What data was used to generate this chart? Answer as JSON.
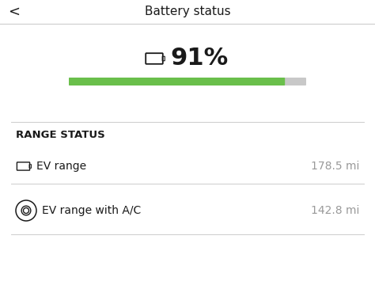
{
  "title": "Battery status",
  "back_arrow": "<",
  "battery_percent": "91%",
  "battery_level": 0.91,
  "bar_color_filled": "#6abf4b",
  "bar_color_empty": "#c8c8c8",
  "section_title": "RANGE STATUS",
  "row1_label": "EV range",
  "row1_value": "178.5 mi",
  "row2_label": "EV range with A/C",
  "row2_value": "142.8 mi",
  "bg_color": "#f5f5f5",
  "text_color_dark": "#1a1a1a",
  "text_color_gray": "#999999",
  "separator_color": "#cccccc",
  "title_fontsize": 11,
  "percent_fontsize": 22,
  "section_fontsize": 9.5,
  "row_fontsize": 10,
  "value_fontsize": 10
}
